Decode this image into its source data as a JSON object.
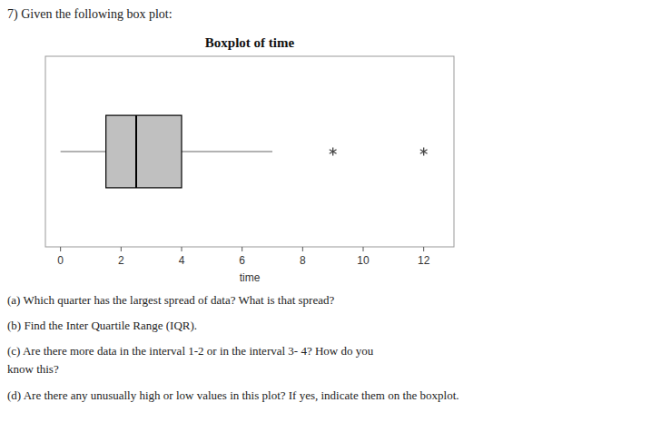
{
  "header": "7)  Given the following box plot:",
  "questions": [
    "(a)  Which quarter has the largest spread of data? What is that spread?",
    "(b)  Find the Inter Quartile Range (IQR).",
    "(c)  Are there more data in the interval 1-2 or in the interval 3- 4? How do you",
    "know this?",
    "(d)  Are there any unusually high or low values in this plot? If yes, indicate them on the boxplot."
  ],
  "chart_data": {
    "type": "box",
    "title": "Boxplot of time",
    "xlabel": "time",
    "xlim": [
      -0.5,
      13
    ],
    "xticks": [
      0,
      2,
      4,
      6,
      8,
      10,
      12
    ],
    "whisker_low": 0.0,
    "q1": 1.5,
    "median": 2.5,
    "q3": 4.0,
    "whisker_high": 7.0,
    "outliers": [
      9.0,
      12.0
    ],
    "marker": "asterisk",
    "color": "#c0c0c0"
  }
}
